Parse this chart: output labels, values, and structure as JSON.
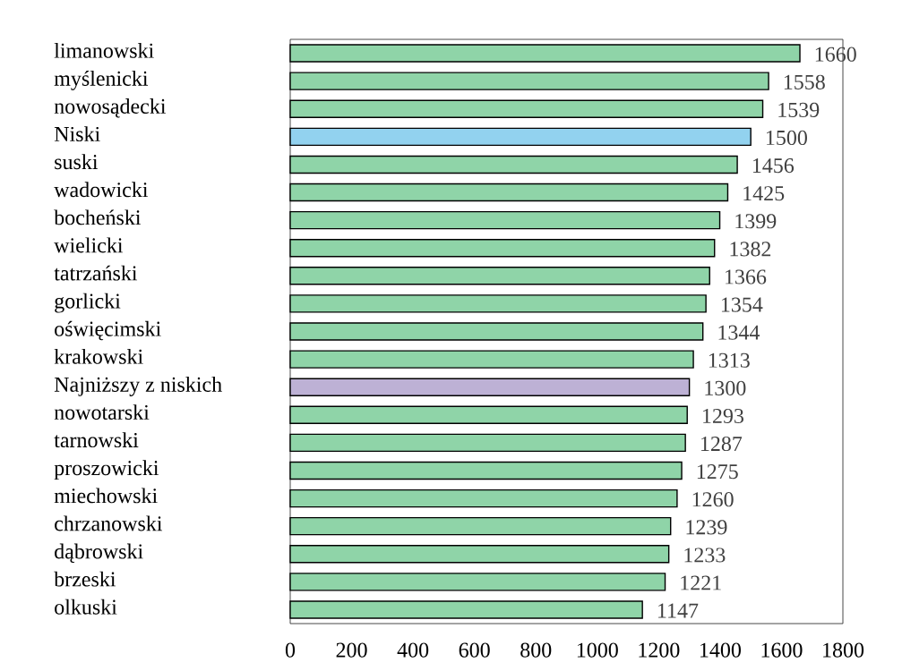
{
  "chart_data": {
    "type": "bar",
    "orientation": "horizontal",
    "categories": [
      "limanowski",
      "myślenicki",
      "nowosądecki",
      "Niski",
      "suski",
      "wadowicki",
      "bocheński",
      "wielicki",
      "tatrzański",
      "gorlicki",
      "oświęcimski",
      "krakowski",
      "Najniższy z niskich",
      "nowotarski",
      "tarnowski",
      "proszowicki",
      "miechowski",
      "chrzanowski",
      "dąbrowski",
      "brzeski",
      "olkuski"
    ],
    "values": [
      1660,
      1558,
      1539,
      1500,
      1456,
      1425,
      1399,
      1382,
      1366,
      1354,
      1344,
      1313,
      1300,
      1293,
      1287,
      1275,
      1260,
      1239,
      1233,
      1221,
      1147
    ],
    "colors": [
      "#8fd4a8",
      "#8fd4a8",
      "#8fd4a8",
      "#92d2ef",
      "#8fd4a8",
      "#8fd4a8",
      "#8fd4a8",
      "#8fd4a8",
      "#8fd4a8",
      "#8fd4a8",
      "#8fd4a8",
      "#8fd4a8",
      "#bdb1d5",
      "#8fd4a8",
      "#8fd4a8",
      "#8fd4a8",
      "#8fd4a8",
      "#8fd4a8",
      "#8fd4a8",
      "#8fd4a8",
      "#8fd4a8"
    ],
    "xlim": [
      0,
      1800
    ],
    "xticks": [
      0,
      200,
      400,
      600,
      800,
      1000,
      1200,
      1400,
      1600,
      1800
    ],
    "data_labels": true
  }
}
